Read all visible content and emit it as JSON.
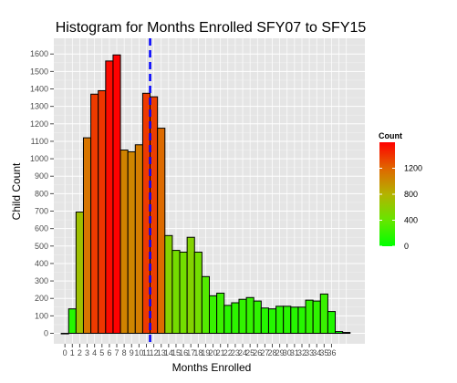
{
  "chart_data": {
    "type": "bar",
    "title": "Histogram for Months Enrolled SFY07 to SFY15",
    "xlabel": "Months Enrolled",
    "ylabel": "Child Count",
    "x": [
      0,
      1,
      2,
      3,
      4,
      5,
      6,
      7,
      8,
      9,
      10,
      11,
      12,
      13,
      14,
      15,
      16,
      17,
      18,
      19,
      20,
      21,
      22,
      23,
      24,
      25,
      26,
      27,
      28,
      29,
      30,
      31,
      32,
      33,
      34,
      35,
      36,
      37,
      38
    ],
    "values": [
      0,
      140,
      695,
      1120,
      1370,
      1390,
      1560,
      1595,
      1050,
      1040,
      1080,
      1375,
      1355,
      1175,
      560,
      475,
      465,
      550,
      465,
      325,
      215,
      230,
      160,
      175,
      195,
      205,
      185,
      145,
      140,
      155,
      155,
      150,
      150,
      190,
      185,
      225,
      125,
      10,
      5
    ],
    "x_tick_labels": [
      "0",
      "1",
      "2",
      "3",
      "4",
      "5",
      "6",
      "7",
      "8",
      "9",
      "10",
      "11",
      "12",
      "13",
      "14",
      "15",
      "16",
      "17",
      "18",
      "19",
      "20",
      "21",
      "22",
      "23",
      "24",
      "25",
      "26",
      "27",
      "28",
      "29",
      "30",
      "31",
      "32",
      "33",
      "34",
      "35",
      "36"
    ],
    "y_ticks": [
      0,
      100,
      200,
      300,
      400,
      500,
      600,
      700,
      800,
      900,
      1000,
      1100,
      1200,
      1300,
      1400,
      1500,
      1600
    ],
    "ylim": [
      -60,
      1690
    ],
    "xlim": [
      -1.5,
      40.5
    ],
    "reference_line": {
      "x": 11.5,
      "color": "#0000ff",
      "style": "dashed"
    },
    "legend": {
      "title": "Count",
      "position": "right",
      "ticks": [
        0,
        400,
        800,
        1200
      ],
      "color_low": "#00ff00",
      "color_high": "#ff0000",
      "range": [
        0,
        1600
      ]
    },
    "grid": true,
    "panel_background": "#e5e5e5",
    "bar_outline": "#000000"
  }
}
